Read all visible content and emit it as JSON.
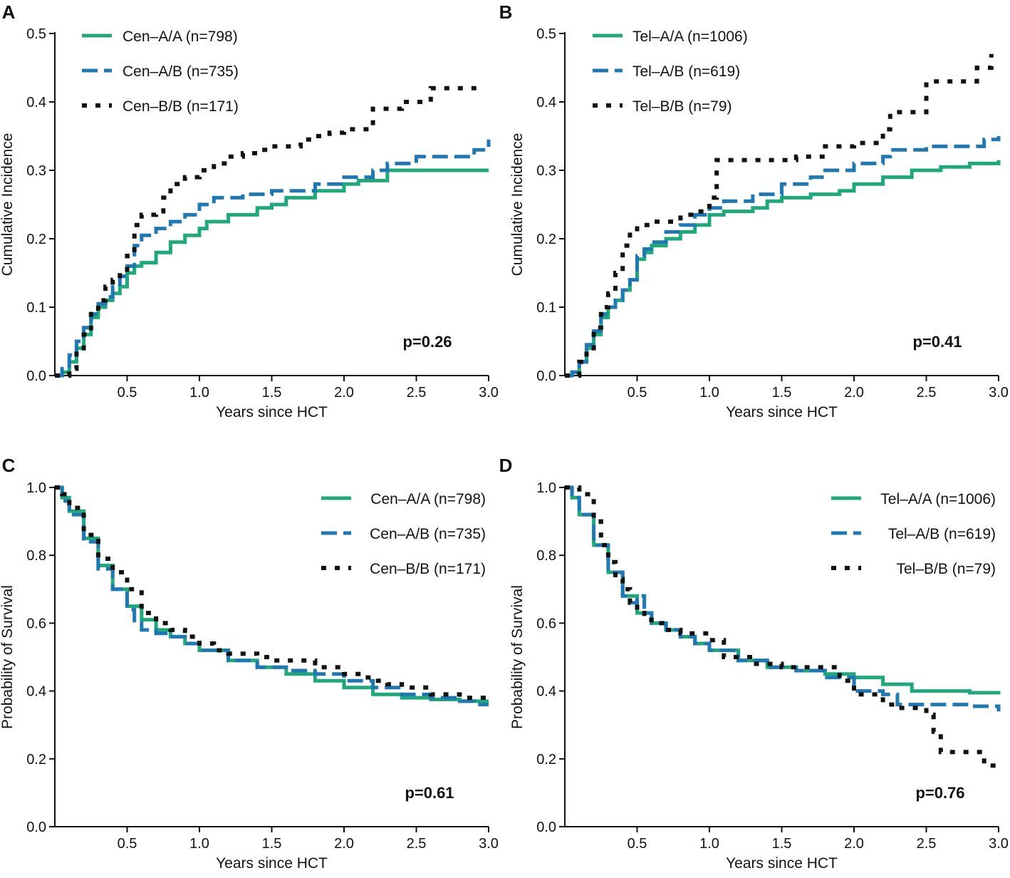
{
  "colors": {
    "green": "#1fa97a",
    "blue": "#1f77b4",
    "black": "#111111",
    "axis": "#111111"
  },
  "chart_data": [
    {
      "panel_label": "A",
      "type": "line",
      "xlabel": "Years since HCT",
      "ylabel": "Cumulative Incidence",
      "xlim": [
        0,
        3.0
      ],
      "ylim": [
        0,
        0.5
      ],
      "xticks": [
        "0.5",
        "1.0",
        "1.5",
        "2.0",
        "2.5",
        "3.0"
      ],
      "xtick_values": [
        0.5,
        1.0,
        1.5,
        2.0,
        2.5,
        3.0
      ],
      "yticks": [
        "0.0",
        "0.1",
        "0.2",
        "0.3",
        "0.4",
        "0.5"
      ],
      "ytick_values": [
        0.0,
        0.1,
        0.2,
        0.3,
        0.4,
        0.5
      ],
      "legend_position": "top-left",
      "annotation": "p=0.26",
      "series": [
        {
          "name": "Cen–A/A (n=798)",
          "style": "solid",
          "x": [
            0,
            0.05,
            0.1,
            0.15,
            0.2,
            0.25,
            0.3,
            0.35,
            0.4,
            0.45,
            0.5,
            0.55,
            0.6,
            0.7,
            0.8,
            0.9,
            1.0,
            1.05,
            1.2,
            1.4,
            1.5,
            1.6,
            1.8,
            2.0,
            2.1,
            2.3,
            2.5,
            2.7,
            3.0
          ],
          "y": [
            0,
            0.005,
            0.02,
            0.04,
            0.06,
            0.085,
            0.1,
            0.11,
            0.12,
            0.13,
            0.15,
            0.16,
            0.165,
            0.18,
            0.195,
            0.205,
            0.215,
            0.225,
            0.235,
            0.245,
            0.25,
            0.26,
            0.27,
            0.28,
            0.285,
            0.3,
            0.3,
            0.3,
            0.3
          ]
        },
        {
          "name": "Cen–A/B (n=735)",
          "style": "dashed",
          "x": [
            0,
            0.05,
            0.1,
            0.15,
            0.2,
            0.25,
            0.3,
            0.35,
            0.4,
            0.45,
            0.5,
            0.55,
            0.6,
            0.7,
            0.8,
            0.9,
            1.0,
            1.1,
            1.3,
            1.5,
            1.8,
            2.0,
            2.2,
            2.3,
            2.5,
            2.8,
            2.9,
            3.0
          ],
          "y": [
            0,
            0.01,
            0.03,
            0.05,
            0.07,
            0.09,
            0.105,
            0.115,
            0.13,
            0.145,
            0.16,
            0.19,
            0.205,
            0.215,
            0.225,
            0.235,
            0.25,
            0.26,
            0.265,
            0.27,
            0.28,
            0.29,
            0.3,
            0.31,
            0.32,
            0.32,
            0.33,
            0.345
          ]
        },
        {
          "name": "Cen–B/B (n=171)",
          "style": "dotted",
          "x": [
            0,
            0.1,
            0.15,
            0.2,
            0.25,
            0.3,
            0.35,
            0.4,
            0.45,
            0.5,
            0.55,
            0.6,
            0.7,
            0.75,
            0.8,
            0.9,
            1.0,
            1.1,
            1.2,
            1.3,
            1.4,
            1.5,
            1.6,
            1.7,
            1.8,
            1.9,
            2.0,
            2.1,
            2.2,
            2.3,
            2.4,
            2.5,
            2.6,
            2.7,
            2.95
          ],
          "y": [
            0,
            0.01,
            0.04,
            0.06,
            0.09,
            0.11,
            0.13,
            0.14,
            0.15,
            0.175,
            0.22,
            0.235,
            0.24,
            0.26,
            0.28,
            0.29,
            0.3,
            0.31,
            0.32,
            0.325,
            0.33,
            0.335,
            0.335,
            0.345,
            0.35,
            0.355,
            0.36,
            0.36,
            0.39,
            0.39,
            0.4,
            0.4,
            0.42,
            0.42,
            0.42
          ]
        }
      ]
    },
    {
      "panel_label": "B",
      "type": "line",
      "xlabel": "Years since HCT",
      "ylabel": "Cumulative Incidence",
      "xlim": [
        0,
        3.0
      ],
      "ylim": [
        0,
        0.5
      ],
      "xticks": [
        "0.5",
        "1.0",
        "1.5",
        "2.0",
        "2.5",
        "3.0"
      ],
      "xtick_values": [
        0.5,
        1.0,
        1.5,
        2.0,
        2.5,
        3.0
      ],
      "yticks": [
        "0.0",
        "0.1",
        "0.2",
        "0.3",
        "0.4",
        "0.5"
      ],
      "ytick_values": [
        0.0,
        0.1,
        0.2,
        0.3,
        0.4,
        0.5
      ],
      "legend_position": "top-left",
      "annotation": "p=0.41",
      "series": [
        {
          "name": "Tel–A/A (n=1006)",
          "style": "solid",
          "x": [
            0,
            0.05,
            0.1,
            0.15,
            0.2,
            0.25,
            0.3,
            0.35,
            0.4,
            0.45,
            0.5,
            0.55,
            0.6,
            0.7,
            0.8,
            0.9,
            1.0,
            1.1,
            1.3,
            1.4,
            1.5,
            1.7,
            1.9,
            2.0,
            2.2,
            2.4,
            2.6,
            2.8,
            3.0
          ],
          "y": [
            0,
            0.005,
            0.02,
            0.04,
            0.06,
            0.085,
            0.1,
            0.11,
            0.125,
            0.14,
            0.17,
            0.18,
            0.19,
            0.2,
            0.21,
            0.22,
            0.235,
            0.24,
            0.245,
            0.255,
            0.26,
            0.265,
            0.27,
            0.28,
            0.29,
            0.3,
            0.305,
            0.31,
            0.315
          ]
        },
        {
          "name": "Tel–A/B (n=619)",
          "style": "dashed",
          "x": [
            0,
            0.05,
            0.1,
            0.15,
            0.2,
            0.25,
            0.3,
            0.35,
            0.4,
            0.45,
            0.5,
            0.55,
            0.6,
            0.7,
            0.8,
            0.9,
            1.0,
            1.1,
            1.3,
            1.5,
            1.7,
            1.8,
            2.0,
            2.2,
            2.25,
            2.5,
            2.8,
            2.9,
            3.0
          ],
          "y": [
            0,
            0.005,
            0.02,
            0.045,
            0.065,
            0.09,
            0.1,
            0.11,
            0.125,
            0.14,
            0.175,
            0.185,
            0.195,
            0.21,
            0.22,
            0.235,
            0.245,
            0.255,
            0.265,
            0.28,
            0.29,
            0.3,
            0.31,
            0.32,
            0.33,
            0.335,
            0.335,
            0.345,
            0.35
          ]
        },
        {
          "name": "Tel–B/B (n=79)",
          "style": "dotted",
          "x": [
            0,
            0.1,
            0.15,
            0.2,
            0.25,
            0.3,
            0.35,
            0.4,
            0.45,
            0.5,
            0.6,
            0.8,
            0.9,
            1.0,
            1.05,
            1.2,
            1.4,
            1.6,
            1.8,
            2.0,
            2.2,
            2.25,
            2.5,
            2.8,
            2.85,
            2.95
          ],
          "y": [
            0,
            0.02,
            0.04,
            0.07,
            0.1,
            0.12,
            0.15,
            0.19,
            0.21,
            0.22,
            0.225,
            0.235,
            0.24,
            0.26,
            0.315,
            0.315,
            0.315,
            0.32,
            0.335,
            0.34,
            0.36,
            0.385,
            0.43,
            0.43,
            0.45,
            0.47
          ]
        }
      ]
    },
    {
      "panel_label": "C",
      "type": "line",
      "xlabel": "Years since HCT",
      "ylabel": "Probability of Survival",
      "xlim": [
        0,
        3.0
      ],
      "ylim": [
        0,
        1.0
      ],
      "xticks": [
        "0.5",
        "1.0",
        "1.5",
        "2.0",
        "2.5",
        "3.0"
      ],
      "xtick_values": [
        0.5,
        1.0,
        1.5,
        2.0,
        2.5,
        3.0
      ],
      "yticks": [
        "0.0",
        "0.2",
        "0.4",
        "0.6",
        "0.8",
        "1.0"
      ],
      "ytick_values": [
        0.0,
        0.2,
        0.4,
        0.6,
        0.8,
        1.0
      ],
      "legend_position": "top-right",
      "annotation": "p=0.61",
      "series": [
        {
          "name": "Cen–A/A (n=798)",
          "style": "solid",
          "x": [
            0,
            0.05,
            0.1,
            0.2,
            0.3,
            0.4,
            0.5,
            0.6,
            0.7,
            0.8,
            0.9,
            1.0,
            1.2,
            1.4,
            1.6,
            1.8,
            2.0,
            2.2,
            2.4,
            2.6,
            2.8,
            3.0
          ],
          "y": [
            1.0,
            0.97,
            0.93,
            0.85,
            0.77,
            0.7,
            0.65,
            0.61,
            0.58,
            0.56,
            0.54,
            0.52,
            0.49,
            0.47,
            0.45,
            0.43,
            0.41,
            0.39,
            0.38,
            0.375,
            0.37,
            0.37
          ]
        },
        {
          "name": "Cen–A/B (n=735)",
          "style": "dashed",
          "x": [
            0,
            0.05,
            0.1,
            0.2,
            0.3,
            0.4,
            0.5,
            0.55,
            0.6,
            0.7,
            0.8,
            0.9,
            1.0,
            1.2,
            1.4,
            1.6,
            1.8,
            2.0,
            2.2,
            2.4,
            2.6,
            2.8,
            2.9,
            3.0
          ],
          "y": [
            1.0,
            0.96,
            0.92,
            0.84,
            0.76,
            0.7,
            0.64,
            0.6,
            0.58,
            0.57,
            0.56,
            0.54,
            0.52,
            0.49,
            0.47,
            0.46,
            0.45,
            0.43,
            0.41,
            0.39,
            0.38,
            0.37,
            0.36,
            0.36
          ]
        },
        {
          "name": "Cen–B/B (n=171)",
          "style": "dotted",
          "x": [
            0,
            0.05,
            0.1,
            0.2,
            0.3,
            0.4,
            0.5,
            0.6,
            0.7,
            0.8,
            0.9,
            1.0,
            1.1,
            1.2,
            1.4,
            1.5,
            1.6,
            1.7,
            1.8,
            1.9,
            2.0,
            2.1,
            2.2,
            2.3,
            2.4,
            2.6,
            2.8,
            3.0
          ],
          "y": [
            1.0,
            0.98,
            0.94,
            0.86,
            0.79,
            0.75,
            0.7,
            0.63,
            0.6,
            0.58,
            0.56,
            0.54,
            0.52,
            0.51,
            0.5,
            0.49,
            0.49,
            0.49,
            0.47,
            0.47,
            0.45,
            0.44,
            0.43,
            0.42,
            0.41,
            0.39,
            0.38,
            0.38
          ]
        }
      ]
    },
    {
      "panel_label": "D",
      "type": "line",
      "xlabel": "Years since HCT",
      "ylabel": "Probability of Survival",
      "xlim": [
        0,
        3.0
      ],
      "ylim": [
        0,
        1.0
      ],
      "xticks": [
        "0.5",
        "1.0",
        "1.5",
        "2.0",
        "2.5",
        "3.0"
      ],
      "xtick_values": [
        0.5,
        1.0,
        1.5,
        2.0,
        2.5,
        3.0
      ],
      "yticks": [
        "0.0",
        "0.2",
        "0.4",
        "0.6",
        "0.8",
        "1.0"
      ],
      "ytick_values": [
        0.0,
        0.2,
        0.4,
        0.6,
        0.8,
        1.0
      ],
      "legend_position": "top-right",
      "annotation": "p=0.76",
      "series": [
        {
          "name": "Tel–A/A (n=1006)",
          "style": "solid",
          "x": [
            0,
            0.05,
            0.1,
            0.2,
            0.3,
            0.4,
            0.5,
            0.6,
            0.7,
            0.8,
            0.9,
            1.0,
            1.2,
            1.4,
            1.6,
            1.8,
            2.0,
            2.2,
            2.4,
            2.6,
            2.8,
            3.0
          ],
          "y": [
            1.0,
            0.97,
            0.92,
            0.83,
            0.75,
            0.68,
            0.63,
            0.6,
            0.58,
            0.56,
            0.54,
            0.52,
            0.49,
            0.47,
            0.46,
            0.45,
            0.44,
            0.42,
            0.4,
            0.4,
            0.395,
            0.39
          ]
        },
        {
          "name": "Tel–A/B (n=619)",
          "style": "dashed",
          "x": [
            0,
            0.05,
            0.1,
            0.2,
            0.3,
            0.4,
            0.45,
            0.5,
            0.55,
            0.6,
            0.7,
            0.8,
            0.9,
            1.0,
            1.2,
            1.4,
            1.6,
            1.8,
            2.0,
            2.2,
            2.3,
            2.6,
            2.8,
            3.0
          ],
          "y": [
            1.0,
            0.97,
            0.92,
            0.83,
            0.75,
            0.68,
            0.66,
            0.68,
            0.63,
            0.6,
            0.58,
            0.56,
            0.54,
            0.52,
            0.49,
            0.47,
            0.46,
            0.44,
            0.4,
            0.39,
            0.36,
            0.36,
            0.355,
            0.34
          ]
        },
        {
          "name": "Tel–B/B (n=79)",
          "style": "dotted",
          "x": [
            0,
            0.1,
            0.2,
            0.25,
            0.3,
            0.35,
            0.4,
            0.45,
            0.5,
            0.55,
            0.6,
            0.7,
            0.8,
            0.9,
            1.0,
            1.1,
            1.3,
            1.5,
            1.7,
            1.8,
            1.9,
            2.0,
            2.1,
            2.2,
            2.3,
            2.4,
            2.5,
            2.55,
            2.6,
            2.8,
            2.9,
            3.0
          ],
          "y": [
            1.0,
            0.98,
            0.9,
            0.83,
            0.78,
            0.73,
            0.7,
            0.66,
            0.63,
            0.61,
            0.6,
            0.58,
            0.57,
            0.57,
            0.55,
            0.5,
            0.48,
            0.47,
            0.47,
            0.47,
            0.43,
            0.39,
            0.39,
            0.36,
            0.35,
            0.35,
            0.33,
            0.28,
            0.22,
            0.22,
            0.18,
            0.18
          ]
        }
      ]
    }
  ]
}
